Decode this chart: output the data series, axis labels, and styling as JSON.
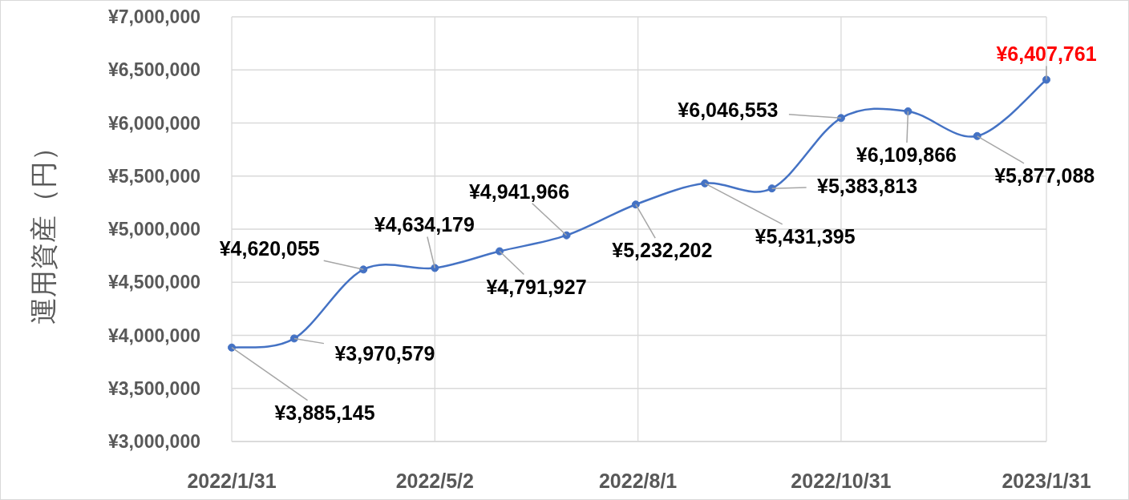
{
  "chart_data": {
    "type": "line",
    "ylabel": "運用資産（円）",
    "x": [
      "2022-01-31",
      "2022-02-28",
      "2022-03-31",
      "2022-05-02",
      "2022-05-31",
      "2022-06-30",
      "2022-07-31",
      "2022-08-31",
      "2022-09-30",
      "2022-10-31",
      "2022-11-30",
      "2022-12-31",
      "2023-01-31"
    ],
    "series": [
      {
        "color": "#4472c4",
        "values": [
          3885145,
          3970579,
          4620055,
          4634179,
          4791927,
          4941966,
          5232202,
          5431395,
          5383813,
          6046553,
          6109866,
          5877088,
          6407761
        ],
        "value_labels": [
          "¥3,885,145",
          "¥3,970,579",
          "¥4,620,055",
          "¥4,634,179",
          "¥4,791,927",
          "¥4,941,966",
          "¥5,232,202",
          "¥5,431,395",
          "¥5,383,813",
          "¥6,046,553",
          "¥6,109,866",
          "¥5,877,088",
          null
        ]
      }
    ],
    "xlim": [
      "2022-01-31",
      "2023-01-31"
    ],
    "xticks": [
      {
        "value": "2022-01-31",
        "label": "2022/1/31"
      },
      {
        "value": "2022-05-02",
        "label": "2022/5/2"
      },
      {
        "value": "2022-08-01",
        "label": "2022/8/1"
      },
      {
        "value": "2022-10-31",
        "label": "2022/10/31"
      },
      {
        "value": "2023-01-31",
        "label": "2023/1/31"
      }
    ],
    "ylim": [
      3000000,
      7000000
    ],
    "yticks": [
      {
        "value": 3000000,
        "label": "¥3,000,000"
      },
      {
        "value": 3500000,
        "label": "¥3,500,000"
      },
      {
        "value": 4000000,
        "label": "¥4,000,000"
      },
      {
        "value": 4500000,
        "label": "¥4,500,000"
      },
      {
        "value": 5000000,
        "label": "¥5,000,000"
      },
      {
        "value": 5500000,
        "label": "¥5,500,000"
      },
      {
        "value": 6000000,
        "label": "¥6,000,000"
      },
      {
        "value": 6500000,
        "label": "¥6,500,000"
      },
      {
        "value": 7000000,
        "label": "¥7,000,000"
      }
    ],
    "grid": true,
    "marker": "circle",
    "annotations": [
      {
        "text": "¥6,407,761",
        "x": "2023-01-31",
        "y": 6407761
      }
    ]
  }
}
